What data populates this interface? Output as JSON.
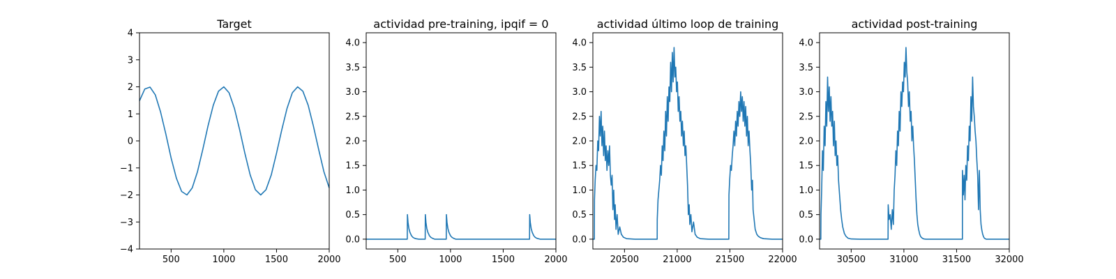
{
  "chart_data": [
    {
      "type": "line",
      "title": "Target",
      "xlabel": "",
      "ylabel": "",
      "xlim": [
        200,
        2000
      ],
      "ylim": [
        -4,
        4
      ],
      "xticks": [
        500,
        1000,
        1500,
        2000
      ],
      "yticks": [
        -4,
        -3,
        -2,
        -1,
        0,
        1,
        2,
        3,
        4
      ],
      "grid": false,
      "series_color": "#1f77b4",
      "series": [
        {
          "x": [
            200,
            250,
            300,
            350,
            400,
            450,
            500,
            550,
            600,
            650,
            700,
            750,
            800,
            850,
            900,
            950,
            1000,
            1050,
            1100,
            1150,
            1200,
            1250,
            1300,
            1350,
            1400,
            1450,
            1500,
            1550,
            1600,
            1650,
            1700,
            1750,
            1800,
            1850,
            1900,
            1950,
            2000
          ],
          "y": [
            1.48,
            1.92,
            1.99,
            1.7,
            1.07,
            0.25,
            -0.63,
            -1.38,
            -1.87,
            -2.0,
            -1.74,
            -1.14,
            -0.32,
            0.55,
            1.32,
            1.84,
            2.0,
            1.78,
            1.21,
            0.41,
            -0.46,
            -1.26,
            -1.81,
            -2.0,
            -1.81,
            -1.26,
            -0.46,
            0.41,
            1.21,
            1.78,
            2.0,
            1.84,
            1.32,
            0.55,
            -0.32,
            -1.14,
            -1.74
          ]
        }
      ]
    },
    {
      "type": "line",
      "title": "actividad pre-training, ipqif = 0",
      "xlabel": "",
      "ylabel": "",
      "xlim": [
        200,
        2000
      ],
      "ylim": [
        -0.2,
        4.2
      ],
      "xticks": [
        500,
        1000,
        1500,
        2000
      ],
      "yticks": [
        0.0,
        0.5,
        1.0,
        1.5,
        2.0,
        2.5,
        3.0,
        3.5,
        4.0
      ],
      "ytick_decimals": 1,
      "grid": false,
      "series_color": "#1f77b4",
      "series": [
        {
          "x": [
            200,
            590,
            591,
            597,
            605,
            615,
            630,
            645,
            660,
            675,
            700,
            760,
            761,
            767,
            775,
            785,
            800,
            815,
            830,
            850,
            960,
            961,
            967,
            975,
            985,
            1000,
            1015,
            1030,
            1050,
            1750,
            1751,
            1757,
            1765,
            1775,
            1790,
            1805,
            1820,
            1850,
            2000
          ],
          "y": [
            0,
            0,
            0.5,
            0.34,
            0.22,
            0.14,
            0.07,
            0.035,
            0.017,
            0.008,
            0,
            0,
            0.5,
            0.34,
            0.22,
            0.14,
            0.07,
            0.035,
            0.017,
            0,
            0,
            0.5,
            0.34,
            0.22,
            0.14,
            0.07,
            0.035,
            0.017,
            0,
            0,
            0.5,
            0.34,
            0.22,
            0.14,
            0.07,
            0.035,
            0.017,
            0,
            0
          ]
        }
      ]
    },
    {
      "type": "line",
      "title": "actividad último loop de training",
      "xlabel": "",
      "ylabel": "",
      "xlim": [
        20200,
        22000
      ],
      "ylim": [
        -0.2,
        4.2
      ],
      "xticks": [
        20500,
        21000,
        21500,
        22000
      ],
      "yticks": [
        0.0,
        0.5,
        1.0,
        1.5,
        2.0,
        2.5,
        3.0,
        3.5,
        4.0
      ],
      "ytick_decimals": 1,
      "grid": false,
      "series_color": "#1f77b4",
      "series": [
        {
          "x": [
            20200,
            20214,
            20215,
            20222,
            20230,
            20238,
            20246,
            20254,
            20262,
            20270,
            20278,
            20286,
            20294,
            20302,
            20310,
            20318,
            20326,
            20334,
            20342,
            20350,
            20358,
            20366,
            20374,
            20382,
            20390,
            20398,
            20406,
            20412,
            20420,
            20430,
            20440,
            20455,
            20470,
            20490,
            20520,
            20600,
            20810,
            20811,
            20818,
            20826,
            20834,
            20842,
            20850,
            20858,
            20866,
            20874,
            20882,
            20890,
            20898,
            20906,
            20914,
            20922,
            20930,
            20938,
            20946,
            20954,
            20962,
            20970,
            20978,
            20986,
            20994,
            21002,
            21010,
            21018,
            21026,
            21034,
            21042,
            21050,
            21058,
            21066,
            21074,
            21082,
            21090,
            21098,
            21106,
            21114,
            21120,
            21130,
            21140,
            21155,
            21170,
            21190,
            21220,
            21300,
            21490,
            21491,
            21498,
            21506,
            21514,
            21522,
            21530,
            21538,
            21546,
            21554,
            21562,
            21570,
            21578,
            21586,
            21594,
            21602,
            21610,
            21618,
            21626,
            21634,
            21642,
            21650,
            21658,
            21666,
            21674,
            21682,
            21690,
            21698,
            21706,
            21714,
            21720,
            21730,
            21740,
            21755,
            21770,
            21790,
            21820,
            21900,
            22000
          ],
          "y": [
            0,
            0,
            0.8,
            1.2,
            1.5,
            1.4,
            2.0,
            1.8,
            2.5,
            2.1,
            2.6,
            1.9,
            2.3,
            1.7,
            2.2,
            1.6,
            1.9,
            1.4,
            1.8,
            1.5,
            1.9,
            1.3,
            1.1,
            1.3,
            0.6,
            1.0,
            0.4,
            0.7,
            0.2,
            0.5,
            0.1,
            0.25,
            0.1,
            0.04,
            0.01,
            0,
            0,
            0.4,
            0.8,
            1.0,
            1.2,
            1.5,
            1.3,
            1.9,
            1.6,
            2.2,
            1.8,
            2.6,
            2.1,
            2.9,
            2.4,
            3.1,
            2.8,
            3.6,
            3.0,
            3.8,
            3.2,
            3.9,
            3.3,
            3.5,
            3.0,
            3.2,
            2.6,
            2.9,
            2.4,
            2.6,
            2.1,
            2.4,
            1.9,
            2.2,
            1.7,
            1.9,
            1.5,
            1.1,
            0.5,
            0.7,
            0.3,
            0.5,
            0.15,
            0.35,
            0.1,
            0.04,
            0.01,
            0,
            0,
            0.9,
            1.2,
            1.5,
            1.4,
            1.7,
            1.9,
            2.2,
            1.9,
            2.4,
            2.1,
            2.6,
            2.3,
            2.8,
            2.5,
            3.0,
            2.6,
            2.9,
            2.4,
            2.8,
            2.3,
            2.7,
            2.1,
            2.5,
            1.9,
            2.2,
            1.8,
            1.5,
            1.0,
            1.2,
            0.6,
            0.4,
            0.2,
            0.1,
            0.06,
            0.03,
            0.01,
            0,
            0
          ]
        }
      ]
    },
    {
      "type": "line",
      "title": "actividad post-training",
      "xlabel": "",
      "ylabel": "",
      "xlim": [
        30200,
        32000
      ],
      "ylim": [
        -0.2,
        4.2
      ],
      "xticks": [
        30500,
        31000,
        31500,
        32000
      ],
      "yticks": [
        0.0,
        0.5,
        1.0,
        1.5,
        2.0,
        2.5,
        3.0,
        3.5,
        4.0
      ],
      "ytick_decimals": 1,
      "grid": false,
      "series_color": "#1f77b4",
      "series": [
        {
          "x": [
            30200,
            30212,
            30213,
            30220,
            30228,
            30236,
            30244,
            30252,
            30260,
            30268,
            30276,
            30284,
            30292,
            30300,
            30308,
            30316,
            30324,
            30332,
            30340,
            30348,
            30356,
            30364,
            30372,
            30380,
            30390,
            30400,
            30410,
            30420,
            30435,
            30450,
            30470,
            30500,
            30580,
            30850,
            30851,
            30860,
            30870,
            30880,
            30890,
            30900,
            30908,
            30916,
            30924,
            30932,
            30940,
            30948,
            30956,
            30964,
            30972,
            30980,
            30988,
            30996,
            31004,
            31012,
            31020,
            31028,
            31036,
            31044,
            31052,
            31060,
            31068,
            31076,
            31084,
            31092,
            31100,
            31108,
            31116,
            31124,
            31132,
            31140,
            31150,
            31160,
            31175,
            31190,
            31210,
            31240,
            31320,
            31555,
            31556,
            31564,
            31572,
            31580,
            31588,
            31596,
            31604,
            31612,
            31620,
            31628,
            31636,
            31644,
            31652,
            31660,
            31668,
            31676,
            31684,
            31692,
            31700,
            31708,
            31716,
            31724,
            31732,
            31740,
            31748,
            31756,
            31764,
            31772,
            31780,
            31790,
            31800,
            31815,
            31830,
            31850,
            31880,
            31960,
            32000
          ],
          "y": [
            0,
            0,
            0.5,
            1.0,
            1.8,
            1.4,
            2.3,
            1.9,
            2.8,
            2.3,
            3.3,
            2.6,
            3.1,
            2.4,
            2.9,
            2.3,
            2.6,
            1.9,
            2.4,
            1.7,
            2.0,
            1.5,
            1.7,
            1.2,
            0.9,
            0.6,
            0.4,
            0.25,
            0.12,
            0.06,
            0.02,
            0.005,
            0,
            0,
            0.7,
            0.4,
            0.5,
            0.2,
            0.6,
            0.3,
            1.0,
            1.3,
            1.8,
            1.5,
            2.2,
            1.9,
            2.6,
            2.2,
            3.0,
            2.7,
            3.2,
            3.0,
            3.6,
            3.3,
            3.9,
            3.4,
            3.2,
            2.7,
            3.0,
            2.4,
            2.6,
            2.0,
            2.3,
            1.9,
            1.6,
            1.2,
            0.8,
            0.5,
            0.3,
            0.2,
            0.1,
            0.05,
            0.02,
            0.005,
            0,
            0,
            0,
            0,
            1.4,
            0.9,
            1.3,
            0.8,
            1.5,
            1.2,
            1.9,
            1.6,
            2.3,
            2.0,
            2.9,
            2.4,
            3.3,
            2.7,
            2.5,
            2.2,
            2.0,
            1.6,
            1.3,
            0.6,
            1.4,
            0.6,
            0.3,
            0.18,
            0.1,
            0.05,
            0.02,
            0.01,
            0,
            0,
            0,
            0,
            0,
            0,
            0,
            0,
            0
          ]
        }
      ]
    }
  ]
}
